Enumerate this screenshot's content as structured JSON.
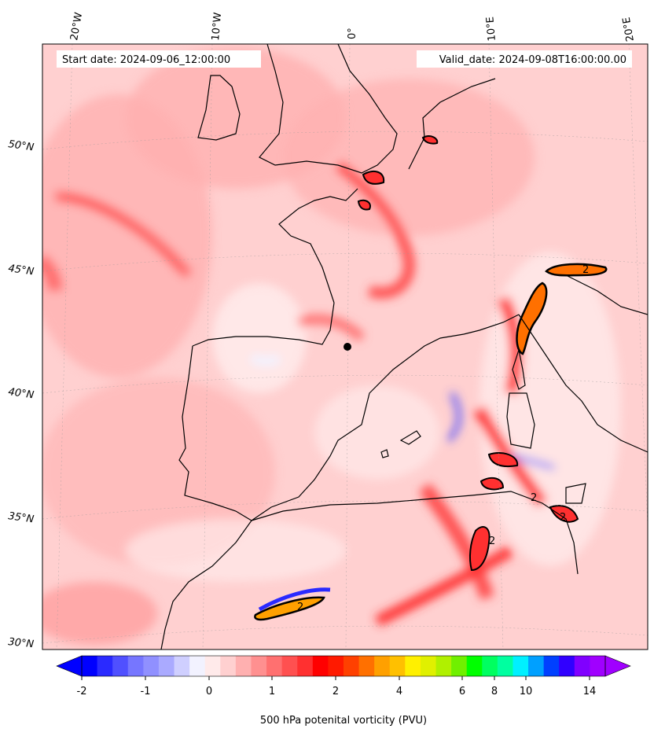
{
  "header": {
    "start_date": "Start date: 2024-09-06_12:00:00",
    "valid_date": "Valid_date: 2024-09-08T16:00:00.00"
  },
  "axes": {
    "lon_labels": [
      "20°W",
      "10°W",
      "0°",
      "10°E",
      "20°E"
    ],
    "lat_labels": [
      "50°N",
      "45°N",
      "40°N",
      "35°N",
      "30°N"
    ]
  },
  "contour_label": "2",
  "colorbar": {
    "title": "500 hPa potenital vorticity (PVU)",
    "tick_labels": [
      "-2",
      "-1",
      "0",
      "1",
      "2",
      "4",
      "6",
      "8",
      "10",
      "14"
    ],
    "colors": [
      "#0000ff",
      "#2a2aff",
      "#5050ff",
      "#7676ff",
      "#9090ff",
      "#aaaaff",
      "#cfcfff",
      "#f2f2ff",
      "#ffeaea",
      "#ffd0d0",
      "#ffb0b0",
      "#ff9090",
      "#ff7070",
      "#ff5050",
      "#ff3030",
      "#ff0000",
      "#ff1a00",
      "#ff4000",
      "#ff7000",
      "#ffa000",
      "#ffc000",
      "#fff000",
      "#e0f000",
      "#b0f000",
      "#70f000",
      "#00ff00",
      "#00ff60",
      "#00ffa0",
      "#00f0ff",
      "#00a0ff",
      "#0040ff",
      "#3000ff",
      "#8000ff",
      "#a000ff"
    ]
  }
}
